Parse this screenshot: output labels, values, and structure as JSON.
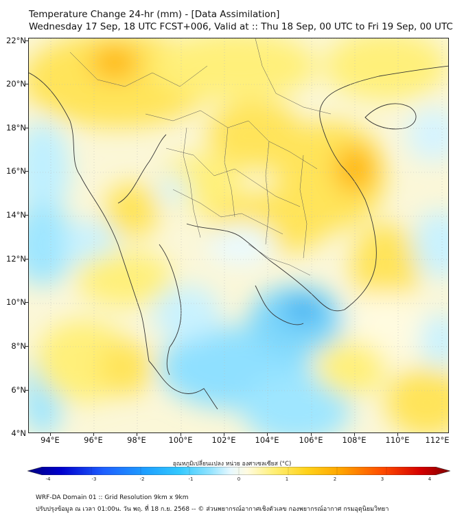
{
  "header": {
    "title_line1": "Temperature Change 24-hr (mm) - [Data Assimilation]",
    "title_line2": "Wednesday 17 Sep, 18 UTC FCST+006, Valid at :: Thu 18 Sep, 00 UTC to Fri 19 Sep, 00 UTC"
  },
  "map": {
    "lat_ticks": [
      "22°N",
      "20°N",
      "18°N",
      "16°N",
      "14°N",
      "12°N",
      "10°N",
      "8°N",
      "6°N",
      "4°N"
    ],
    "lon_ticks": [
      "94°E",
      "96°E",
      "98°E",
      "100°E",
      "102°E",
      "104°E",
      "106°E",
      "108°E",
      "110°E",
      "112°E"
    ],
    "lat_range": [
      4,
      22
    ],
    "lon_range": [
      93,
      112.4
    ]
  },
  "colorbar": {
    "label": "อุณหภูมิเปลี่ยนแปลง หน่วย องศาเซลเซียส (°C)",
    "ticks": [
      "-4",
      "-3",
      "-2",
      "-1",
      "0",
      "1",
      "2",
      "3",
      "4"
    ],
    "min": -4,
    "max": 4,
    "colors": [
      "#000080",
      "#0000cd",
      "#1e5fff",
      "#1e9fff",
      "#33c9ff",
      "#8ee2ff",
      "#d6f4ff",
      "#ffffff",
      "#fff9c4",
      "#fff066",
      "#ffd21a",
      "#ffa500",
      "#ff5a00",
      "#e60000",
      "#990000"
    ]
  },
  "footer": {
    "line1": "WRF-DA Domain 01 :: Grid Resolution 9km x 9km",
    "line2": "ปรับปรุงข้อมูล ณ เวลา 01:00น. วัน พฤ. ที่ 18 ก.ย. 2568 -- © ส่วนพยากรณ์อากาศเชิงตัวเลข กองพยากรณ์อากาศ กรมอุตุนิยมวิทยา"
  }
}
